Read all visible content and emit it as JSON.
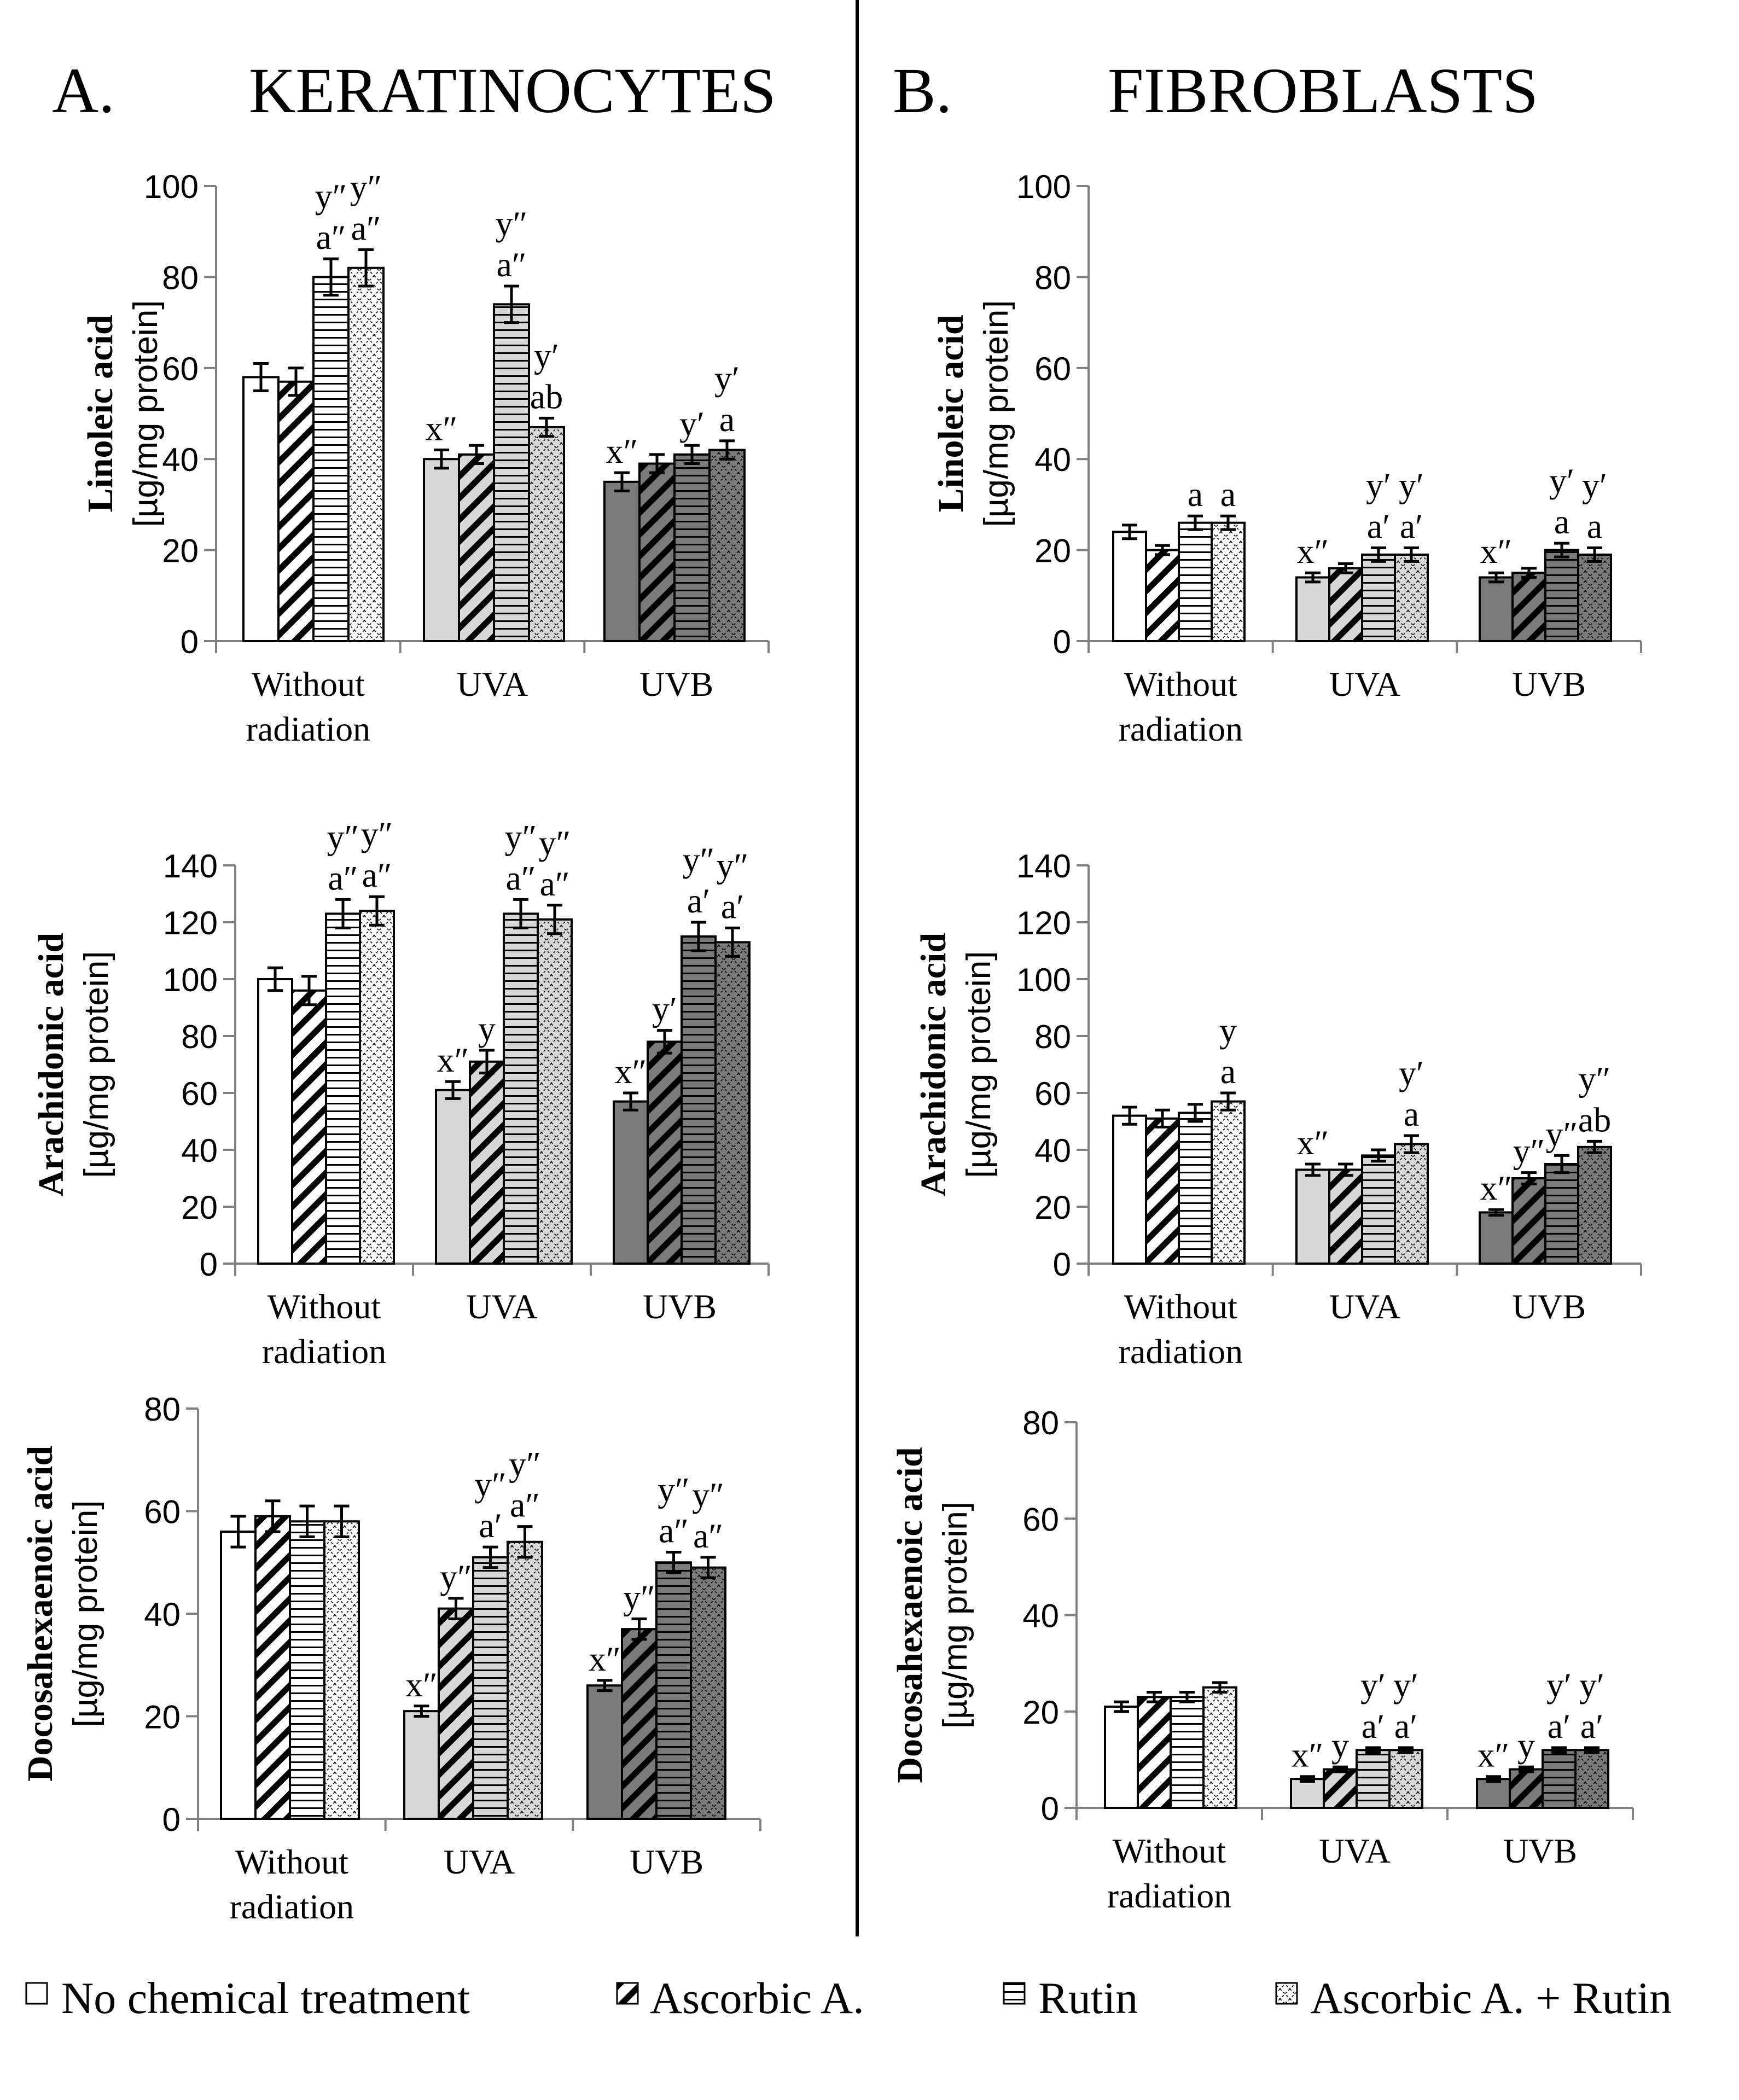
{
  "figure": {
    "panel_titles": [
      {
        "letter": "A.",
        "title": "KERATINOCYTES"
      },
      {
        "letter": "B.",
        "title": "FIBROBLASTS"
      }
    ],
    "legend": [
      {
        "label": "No chemical treatment",
        "fill": "white",
        "pattern": "none"
      },
      {
        "label": "Ascorbic A.",
        "fill": "white",
        "pattern": "diagonal-wide"
      },
      {
        "label": "Rutin",
        "fill": "white",
        "pattern": "horizontal"
      },
      {
        "label": "Ascorbic A. + Rutin",
        "fill": "white",
        "pattern": "diagonal-cross"
      }
    ]
  },
  "chart_data": [
    {
      "type": "bar",
      "panel": "A",
      "row": 1,
      "ylabel_bold": "Linoleic acid",
      "ylabel_unit": "[µg/mg protein]",
      "ylim": [
        0,
        100
      ],
      "yticks": [
        0,
        20,
        40,
        60,
        80,
        100
      ],
      "categories": [
        [
          "Without",
          "radiation"
        ],
        [
          "UVA"
        ],
        [
          "UVB"
        ]
      ],
      "series": [
        {
          "name": "No chemical treatment",
          "values": [
            58,
            40,
            35
          ],
          "errors": [
            3,
            2,
            2
          ],
          "labels": [
            [],
            [
              "x″"
            ],
            [
              "x″"
            ]
          ]
        },
        {
          "name": "Ascorbic A.",
          "values": [
            57,
            41,
            39
          ],
          "errors": [
            3,
            2,
            2
          ],
          "labels": [
            [],
            [],
            []
          ]
        },
        {
          "name": "Rutin",
          "values": [
            80,
            74,
            41
          ],
          "errors": [
            4,
            4,
            2
          ],
          "labels": [
            [
              "a″",
              "y″"
            ],
            [
              "a″",
              "y″"
            ],
            [
              "y′"
            ]
          ]
        },
        {
          "name": "Ascorbic A. + Rutin",
          "values": [
            82,
            47,
            42
          ],
          "errors": [
            4,
            2,
            2
          ],
          "labels": [
            [
              "a″",
              "y″"
            ],
            [
              "ab",
              "y′"
            ],
            [
              "a",
              "y′"
            ]
          ]
        }
      ]
    },
    {
      "type": "bar",
      "panel": "B",
      "row": 1,
      "ylabel_bold": "Linoleic acid",
      "ylabel_unit": "[µg/mg protein]",
      "ylim": [
        0,
        100
      ],
      "yticks": [
        0,
        20,
        40,
        60,
        80,
        100
      ],
      "categories": [
        [
          "Without",
          "radiation"
        ],
        [
          "UVA"
        ],
        [
          "UVB"
        ]
      ],
      "series": [
        {
          "name": "No chemical treatment",
          "values": [
            24,
            14,
            14
          ],
          "errors": [
            1.5,
            1,
            1
          ],
          "labels": [
            [],
            [
              "x″"
            ],
            [
              "x″"
            ]
          ]
        },
        {
          "name": "Ascorbic A.",
          "values": [
            20,
            16,
            15
          ],
          "errors": [
            1,
            1,
            1
          ],
          "labels": [
            [],
            [],
            []
          ]
        },
        {
          "name": "Rutin",
          "values": [
            26,
            19,
            20
          ],
          "errors": [
            1.5,
            1.5,
            1.5
          ],
          "labels": [
            [
              "a"
            ],
            [
              "a′",
              "y′"
            ],
            [
              "a",
              "y′"
            ]
          ]
        },
        {
          "name": "Ascorbic A. + Rutin",
          "values": [
            26,
            19,
            19
          ],
          "errors": [
            1.5,
            1.5,
            1.5
          ],
          "labels": [
            [
              "a"
            ],
            [
              "a′",
              "y′"
            ],
            [
              "a",
              "y′"
            ]
          ]
        }
      ]
    },
    {
      "type": "bar",
      "panel": "A",
      "row": 2,
      "ylabel_bold": "Arachidonic acid",
      "ylabel_unit": "[µg/mg protein]",
      "ylim": [
        0,
        140
      ],
      "yticks": [
        0,
        20,
        40,
        60,
        80,
        100,
        120,
        140
      ],
      "categories": [
        [
          "Without",
          "radiation"
        ],
        [
          "UVA"
        ],
        [
          "UVB"
        ]
      ],
      "series": [
        {
          "name": "No chemical treatment",
          "values": [
            100,
            61,
            57
          ],
          "errors": [
            4,
            3,
            3
          ],
          "labels": [
            [],
            [
              "x″"
            ],
            [
              "x″"
            ]
          ]
        },
        {
          "name": "Ascorbic A.",
          "values": [
            96,
            71,
            78
          ],
          "errors": [
            5,
            4,
            4
          ],
          "labels": [
            [],
            [
              "y"
            ],
            [
              "y′"
            ]
          ]
        },
        {
          "name": "Rutin",
          "values": [
            123,
            123,
            115
          ],
          "errors": [
            5,
            5,
            5
          ],
          "labels": [
            [
              "a″",
              "y″"
            ],
            [
              "a″",
              "y″"
            ],
            [
              "a′",
              "y″"
            ]
          ]
        },
        {
          "name": "Ascorbic A. + Rutin",
          "values": [
            124,
            121,
            113
          ],
          "errors": [
            5,
            5,
            5
          ],
          "labels": [
            [
              "a″",
              "y″"
            ],
            [
              "a″",
              "y″"
            ],
            [
              "a′",
              "y″"
            ]
          ]
        }
      ]
    },
    {
      "type": "bar",
      "panel": "B",
      "row": 2,
      "ylabel_bold": "Arachidonic acid",
      "ylabel_unit": "[µg/mg protein]",
      "ylim": [
        0,
        140
      ],
      "yticks": [
        0,
        20,
        40,
        60,
        80,
        100,
        120,
        140
      ],
      "categories": [
        [
          "Without",
          "radiation"
        ],
        [
          "UVA"
        ],
        [
          "UVB"
        ]
      ],
      "series": [
        {
          "name": "No chemical treatment",
          "values": [
            52,
            33,
            18
          ],
          "errors": [
            3,
            2,
            1
          ],
          "labels": [
            [],
            [
              "x″"
            ],
            [
              "x″"
            ]
          ]
        },
        {
          "name": "Ascorbic A.",
          "values": [
            51,
            33,
            30
          ],
          "errors": [
            3,
            2,
            2
          ],
          "labels": [
            [],
            [],
            [
              "y″"
            ]
          ]
        },
        {
          "name": "Rutin",
          "values": [
            53,
            38,
            35
          ],
          "errors": [
            3,
            2,
            3
          ],
          "labels": [
            [],
            [],
            [
              "y″"
            ]
          ]
        },
        {
          "name": "Ascorbic A. + Rutin",
          "values": [
            57,
            42,
            41
          ],
          "errors": [
            3,
            3,
            2
          ],
          "labels": [
            [
              "a",
              "y"
            ],
            [
              "a",
              "y′"
            ],
            [
              "ab",
              "y″"
            ]
          ]
        }
      ]
    },
    {
      "type": "bar",
      "panel": "A",
      "row": 3,
      "ylabel_bold": "Docosahexaenoic acid",
      "ylabel_unit": "[µg/mg protein]",
      "ylim": [
        0,
        80
      ],
      "yticks": [
        0,
        20,
        40,
        60,
        80
      ],
      "categories": [
        [
          "Without",
          "radiation"
        ],
        [
          "UVA"
        ],
        [
          "UVB"
        ]
      ],
      "series": [
        {
          "name": "No chemical treatment",
          "values": [
            56,
            21,
            26
          ],
          "errors": [
            3,
            1,
            1
          ],
          "labels": [
            [],
            [
              "x″"
            ],
            [
              "x″"
            ]
          ]
        },
        {
          "name": "Ascorbic A.",
          "values": [
            59,
            41,
            37
          ],
          "errors": [
            3,
            2,
            2
          ],
          "labels": [
            [],
            [
              "y″"
            ],
            [
              "y″"
            ]
          ]
        },
        {
          "name": "Rutin",
          "values": [
            58,
            51,
            50
          ],
          "errors": [
            3,
            2,
            2
          ],
          "labels": [
            [],
            [
              "a′",
              "y″"
            ],
            [
              "a″",
              "y″"
            ]
          ]
        },
        {
          "name": "Ascorbic A. + Rutin",
          "values": [
            58,
            54,
            49
          ],
          "errors": [
            3,
            3,
            2
          ],
          "labels": [
            [],
            [
              "a″",
              "y″"
            ],
            [
              "a″",
              "y″"
            ]
          ]
        }
      ]
    },
    {
      "type": "bar",
      "panel": "B",
      "row": 3,
      "ylabel_bold": "Docosahexaenoic acid",
      "ylabel_unit": "[µg/mg protein]",
      "ylim": [
        0,
        80
      ],
      "yticks": [
        0,
        20,
        40,
        60,
        80
      ],
      "categories": [
        [
          "Without",
          "radiation"
        ],
        [
          "UVA"
        ],
        [
          "UVB"
        ]
      ],
      "series": [
        {
          "name": "No chemical treatment",
          "values": [
            21,
            6,
            6
          ],
          "errors": [
            1,
            0.5,
            0.5
          ],
          "labels": [
            [],
            [
              "x″"
            ],
            [
              "x″"
            ]
          ]
        },
        {
          "name": "Ascorbic A.",
          "values": [
            23,
            8,
            8
          ],
          "errors": [
            1,
            0.5,
            0.5
          ],
          "labels": [
            [],
            [
              "y"
            ],
            [
              "y"
            ]
          ]
        },
        {
          "name": "Rutin",
          "values": [
            23,
            12,
            12
          ],
          "errors": [
            1,
            0.5,
            0.5
          ],
          "labels": [
            [],
            [
              "a′",
              "y′"
            ],
            [
              "a′",
              "y′"
            ]
          ]
        },
        {
          "name": "Ascorbic A. + Rutin",
          "values": [
            25,
            12,
            12
          ],
          "errors": [
            1,
            0.5,
            0.5
          ],
          "labels": [
            [],
            [
              "a′",
              "y′"
            ],
            [
              "a′",
              "y′"
            ]
          ]
        }
      ]
    }
  ]
}
